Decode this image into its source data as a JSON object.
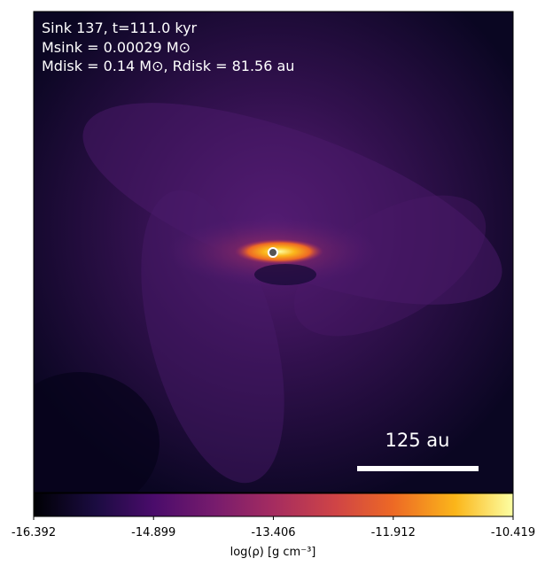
{
  "chart_data": {
    "type": "image",
    "annotations": [
      "Sink 137, t=111.0 kyr",
      "Msink = 0.00029 M⊙",
      "Mdisk = 0.14 M⊙, Rdisk = 81.56 au"
    ],
    "scale_bar_label": "125 au",
    "colormap": "inferno",
    "colorbar_label": "log(ρ) [g cm⁻³]",
    "clim": [
      -16.392,
      -10.419
    ],
    "cticks": [
      -16.392,
      -14.899,
      -13.406,
      -11.912,
      -10.419
    ]
  }
}
